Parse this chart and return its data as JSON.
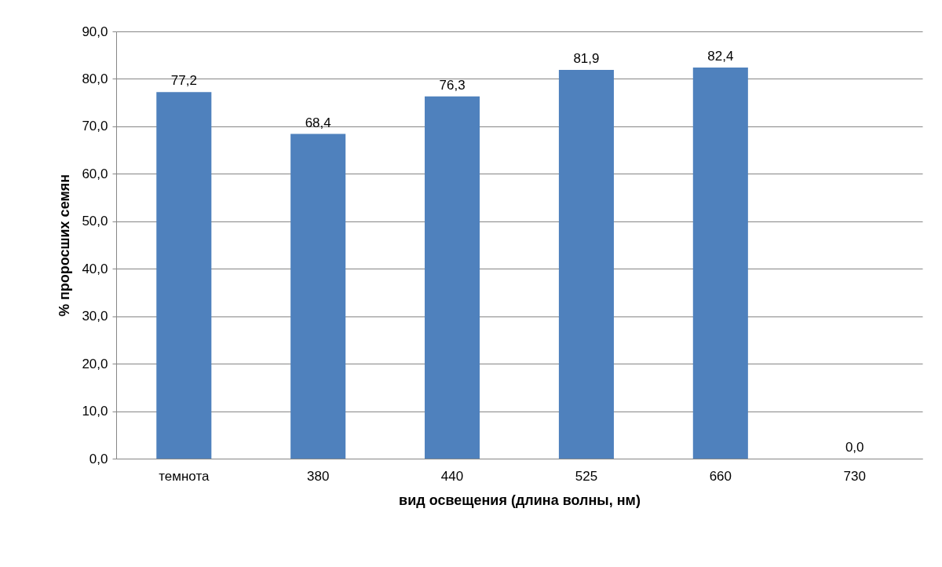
{
  "chart_data": {
    "type": "bar",
    "xlabel": "вид освещения (длина волны, нм)",
    "ylabel": "% проросших семян",
    "categories": [
      "темнота",
      "380",
      "440",
      "525",
      "660",
      "730"
    ],
    "values": [
      77.2,
      68.4,
      76.3,
      81.9,
      82.4,
      0.0
    ],
    "value_labels": [
      "77,2",
      "68,4",
      "76,3",
      "81,9",
      "82,4",
      "0,0"
    ],
    "color": "#4f81bd",
    "ylim": [
      0,
      90
    ],
    "yticks": [
      {
        "value": 0,
        "label": "0,0"
      },
      {
        "value": 10,
        "label": "10,0"
      },
      {
        "value": 20,
        "label": "20,0"
      },
      {
        "value": 30,
        "label": "30,0"
      },
      {
        "value": 40,
        "label": "40,0"
      },
      {
        "value": 50,
        "label": "50,0"
      },
      {
        "value": 60,
        "label": "60,0"
      },
      {
        "value": 70,
        "label": "70,0"
      },
      {
        "value": 80,
        "label": "80,0"
      },
      {
        "value": 90,
        "label": "90,0"
      }
    ],
    "grid": "y"
  }
}
